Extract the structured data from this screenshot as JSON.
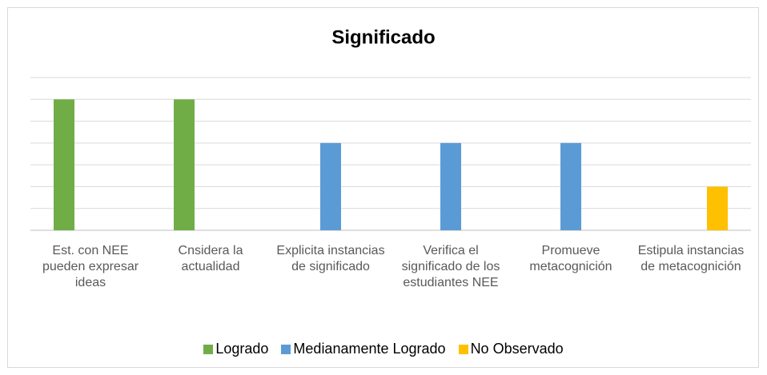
{
  "chart_data": {
    "type": "bar",
    "title": "Significado",
    "categories": [
      "Est. con NEE pueden expresar ideas",
      "Cnsidera la actualidad",
      "Explicita instancias de significado",
      "Verifica el significado de los estudiantes NEE",
      "Promueve metacognición",
      "Estipula instancias de metacognición"
    ],
    "series": [
      {
        "name": "Logrado",
        "color": "#70ad47",
        "values": [
          6,
          6,
          null,
          null,
          null,
          null
        ]
      },
      {
        "name": "Medianamente Logrado",
        "color": "#5b9bd5",
        "values": [
          null,
          null,
          4,
          4,
          4,
          null
        ]
      },
      {
        "name": "No Observado",
        "color": "#ffc000",
        "values": [
          null,
          null,
          null,
          null,
          null,
          2
        ]
      }
    ],
    "ylim": [
      0,
      7
    ],
    "yticks": [
      0,
      1,
      2,
      3,
      4,
      5,
      6,
      7
    ],
    "grid": true,
    "legend": "bottom"
  }
}
